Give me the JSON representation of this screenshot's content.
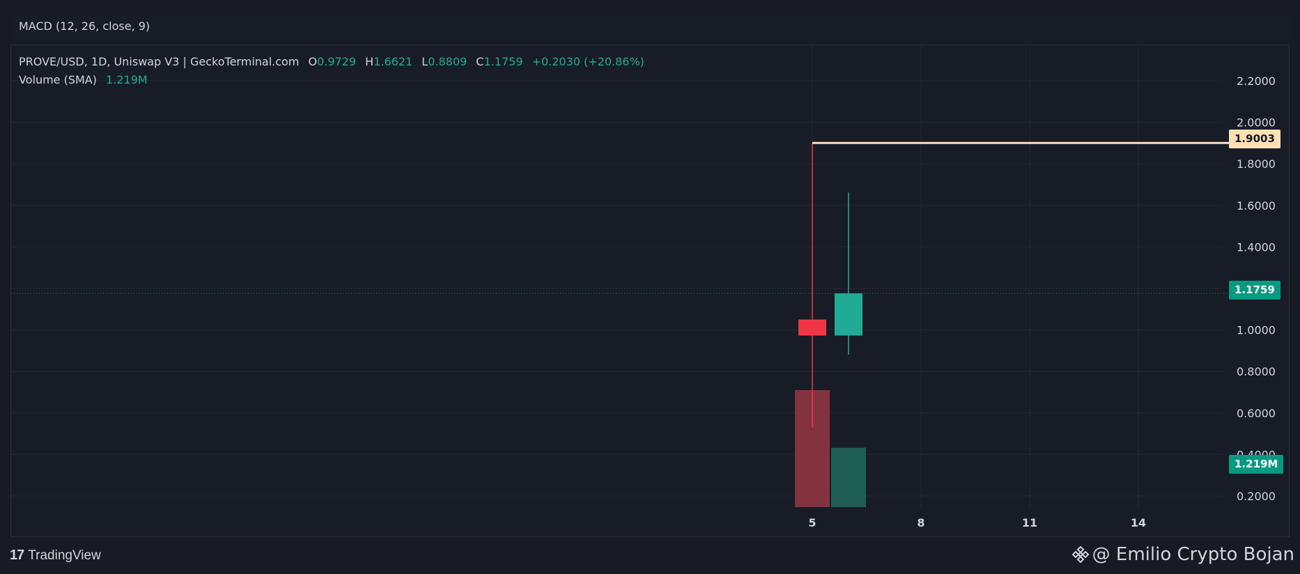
{
  "indicator_header": "MACD (12, 26, close, 9)",
  "legend": {
    "symbol": "PROVE/USD, 1D, Uniswap V3 | GeckoTerminal.com",
    "o_label": "O",
    "o_value": "0.9729",
    "h_label": "H",
    "h_value": "1.6621",
    "l_label": "L",
    "l_value": "0.8809",
    "c_label": "C",
    "c_value": "1.1759",
    "change": "+0.2030 (+20.86%)",
    "volume_label": "Volume (SMA)",
    "volume_value": "1.219M"
  },
  "labels": {
    "last_price": "1.1759",
    "hline_price": "1.9003",
    "volume": "1.219M"
  },
  "footer": {
    "brand": "TradingView",
    "watermark": "@ Emilio Crypto Bojan"
  },
  "colors": {
    "up": "#22ab94",
    "down": "#f23645",
    "up_volume": "#1e5e55",
    "down_volume": "#833340",
    "hline": "#ffe0b2",
    "grid": "#242833",
    "axis_text": "#d1d4dc"
  },
  "chart_data": {
    "type": "candlestick",
    "y_ticks": [
      "0.2000",
      "0.4000",
      "0.6000",
      "0.8000",
      "1.0000",
      "1.2000",
      "1.4000",
      "1.6000",
      "1.8000",
      "2.0000",
      "2.2000"
    ],
    "x_ticks": [
      "5",
      "8",
      "11",
      "14"
    ],
    "ylim": [
      0.12,
      2.35
    ],
    "candles": [
      {
        "day": 5,
        "open": 1.05,
        "high": 1.9003,
        "low": 0.53,
        "close": 0.9729,
        "direction": "down"
      },
      {
        "day": 6,
        "open": 0.9729,
        "high": 1.6621,
        "low": 0.8809,
        "close": 1.1759,
        "direction": "up"
      }
    ],
    "volume": [
      {
        "day": 5,
        "value": 2.4,
        "direction": "down"
      },
      {
        "day": 6,
        "value": 1.219,
        "direction": "up"
      }
    ],
    "horizontal_line": {
      "start_day": 5,
      "value": 1.9003
    },
    "last_price_line": 1.1759,
    "grid": true
  }
}
